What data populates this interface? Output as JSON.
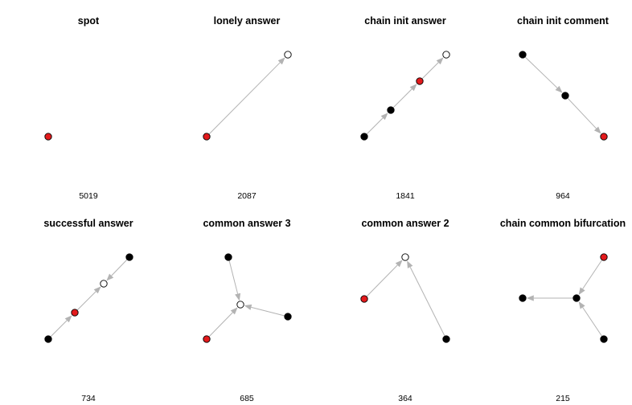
{
  "colors": {
    "focus": "#e31a1c",
    "filled": "#000000",
    "open": "#ffffff",
    "edge": "#b3b3b3"
  },
  "panels": [
    {
      "title": "spot",
      "count": "5019",
      "nodes": [
        {
          "id": "a",
          "kind": "focus"
        }
      ],
      "edges": []
    },
    {
      "title": "lonely answer",
      "count": "2087",
      "nodes": [
        {
          "id": "a",
          "kind": "focus"
        },
        {
          "id": "b",
          "kind": "open"
        }
      ],
      "edges": [
        {
          "from": "a",
          "to": "b"
        }
      ]
    },
    {
      "title": "chain init answer",
      "count": "1841",
      "nodes": [
        {
          "id": "a",
          "kind": "filled"
        },
        {
          "id": "b",
          "kind": "filled"
        },
        {
          "id": "c",
          "kind": "focus"
        },
        {
          "id": "d",
          "kind": "open"
        }
      ],
      "edges": [
        {
          "from": "a",
          "to": "b"
        },
        {
          "from": "b",
          "to": "c"
        },
        {
          "from": "c",
          "to": "d"
        }
      ]
    },
    {
      "title": "chain init comment",
      "count": "964",
      "nodes": [
        {
          "id": "a",
          "kind": "filled"
        },
        {
          "id": "b",
          "kind": "filled"
        },
        {
          "id": "c",
          "kind": "focus"
        }
      ],
      "edges": [
        {
          "from": "a",
          "to": "b"
        },
        {
          "from": "b",
          "to": "c"
        }
      ]
    },
    {
      "title": "successful answer",
      "count": "734",
      "nodes": [
        {
          "id": "a",
          "kind": "filled"
        },
        {
          "id": "b",
          "kind": "focus"
        },
        {
          "id": "c",
          "kind": "open"
        },
        {
          "id": "d",
          "kind": "filled"
        }
      ],
      "edges": [
        {
          "from": "a",
          "to": "b"
        },
        {
          "from": "b",
          "to": "c"
        },
        {
          "from": "d",
          "to": "c"
        }
      ]
    },
    {
      "title": "common answer 3",
      "count": "685",
      "nodes": [
        {
          "id": "a",
          "kind": "filled"
        },
        {
          "id": "b",
          "kind": "open"
        },
        {
          "id": "c",
          "kind": "filled"
        },
        {
          "id": "d",
          "kind": "focus"
        }
      ],
      "edges": [
        {
          "from": "a",
          "to": "b"
        },
        {
          "from": "c",
          "to": "b"
        },
        {
          "from": "d",
          "to": "b"
        }
      ]
    },
    {
      "title": "common answer 2",
      "count": "364",
      "nodes": [
        {
          "id": "a",
          "kind": "open"
        },
        {
          "id": "b",
          "kind": "focus"
        },
        {
          "id": "c",
          "kind": "filled"
        }
      ],
      "edges": [
        {
          "from": "b",
          "to": "a"
        },
        {
          "from": "c",
          "to": "a"
        }
      ]
    },
    {
      "title": "chain common bifurcation",
      "count": "215",
      "nodes": [
        {
          "id": "a",
          "kind": "focus"
        },
        {
          "id": "b",
          "kind": "filled"
        },
        {
          "id": "c",
          "kind": "filled"
        },
        {
          "id": "d",
          "kind": "filled"
        }
      ],
      "edges": [
        {
          "from": "a",
          "to": "c"
        },
        {
          "from": "d",
          "to": "c"
        },
        {
          "from": "c",
          "to": "b"
        }
      ]
    }
  ]
}
